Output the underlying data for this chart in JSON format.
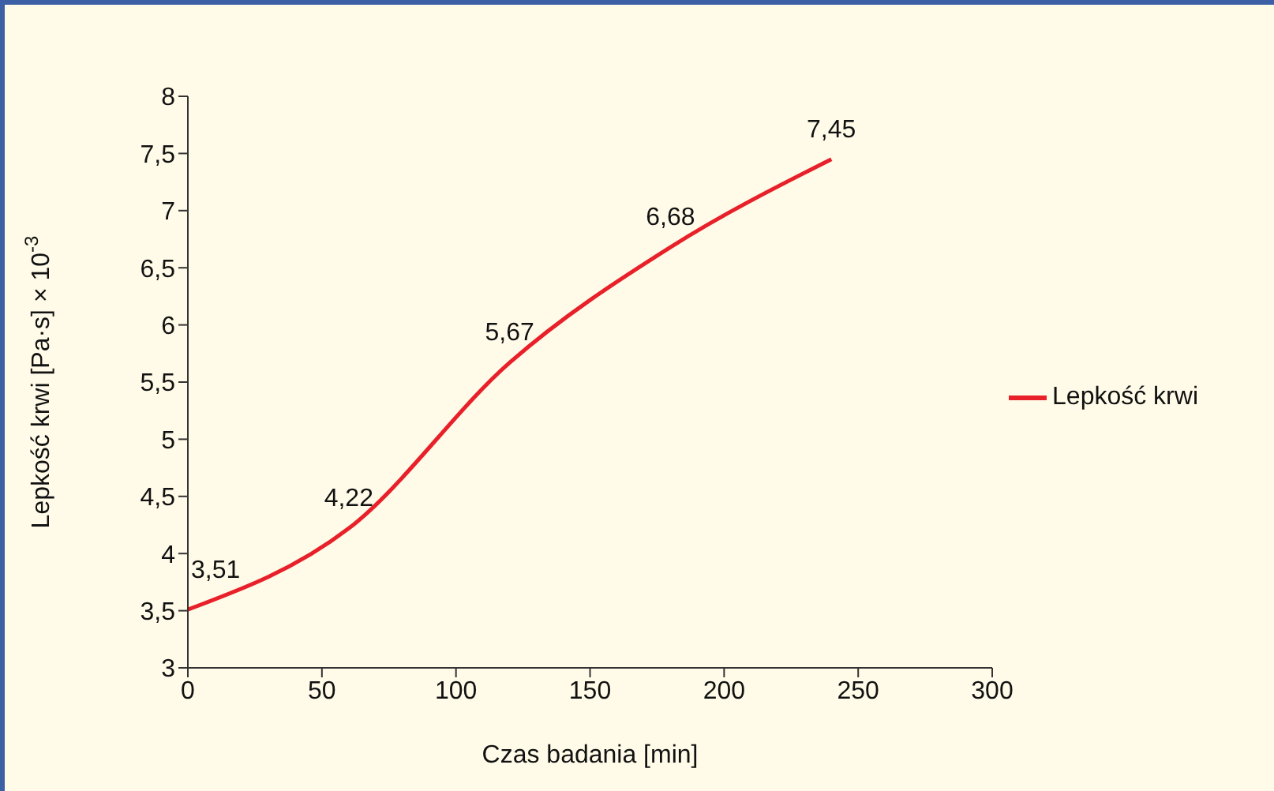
{
  "chart_data": {
    "type": "line",
    "xlabel": "Czas badania [min]",
    "ylabel": "Lepkość krwi [Pa·s] × 10$^{-3}$",
    "x": [
      0,
      60,
      120,
      180,
      240
    ],
    "series": [
      {
        "name": "Lepkość krwi",
        "color": "#e8202a",
        "values": [
          3.51,
          4.22,
          5.67,
          6.68,
          7.45
        ],
        "value_labels": [
          "3,51",
          "4,22",
          "5,67",
          "6,68",
          "7,45"
        ]
      }
    ],
    "xlim": [
      0,
      300
    ],
    "xticks": [
      0,
      50,
      100,
      150,
      200,
      250,
      300
    ],
    "ylim": [
      3,
      8
    ],
    "yticks": [
      3,
      {
        "value": 3.5,
        "label": "3,5"
      },
      4,
      {
        "value": 4.5,
        "label": "4,5"
      },
      5,
      {
        "value": 5.5,
        "label": "5,5"
      },
      6,
      {
        "value": 6.5,
        "label": "6,5"
      },
      7,
      {
        "value": 7.5,
        "label": "7,5"
      },
      8
    ],
    "legend": "right",
    "grid": false,
    "marker": "none",
    "line_style": "solid"
  }
}
